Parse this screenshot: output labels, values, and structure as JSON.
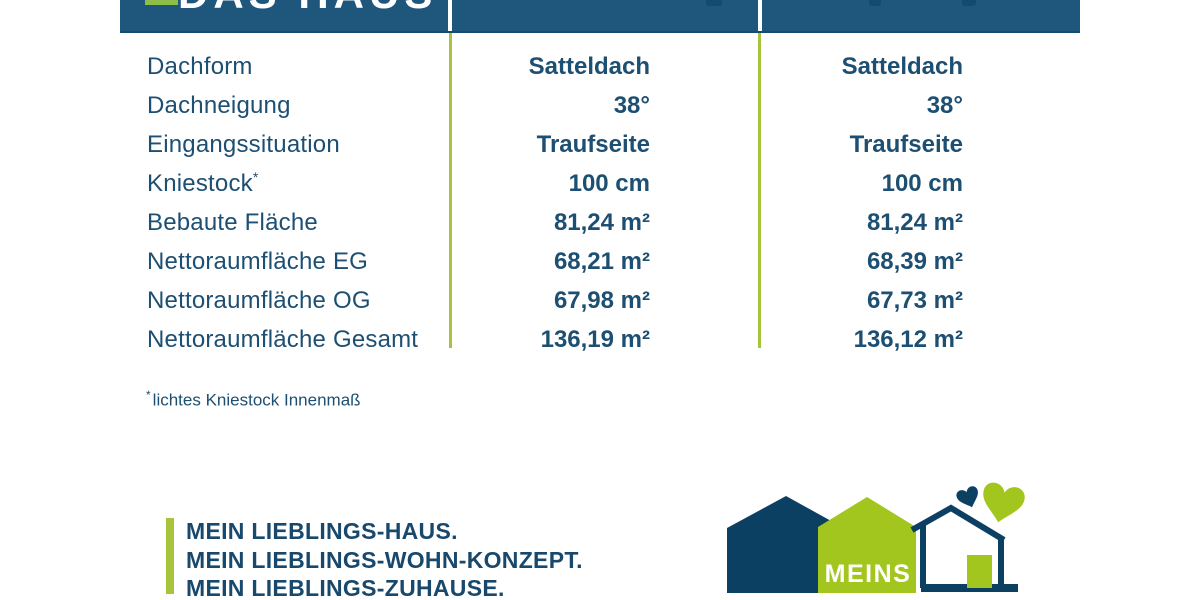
{
  "brand": {
    "logo_text": "DAS HAUS",
    "meins_label": "MEINS"
  },
  "table": {
    "rows": [
      {
        "label": "Dachform",
        "col1": "Satteldach",
        "col2": "Satteldach"
      },
      {
        "label": "Dachneigung",
        "col1": "38°",
        "col2": "38°"
      },
      {
        "label": "Eingangssituation",
        "col1": "Traufseite",
        "col2": "Traufseite"
      },
      {
        "label": "Kniestock",
        "label_sup": "*",
        "col1": "100 cm",
        "col2": "100 cm"
      },
      {
        "label": "Bebaute Fläche",
        "col1": "81,24 m²",
        "col2": "81,24 m²"
      },
      {
        "label": "Nettoraumfläche EG",
        "col1": "68,21 m²",
        "col2": "68,39 m²"
      },
      {
        "label": "Nettoraumfläche OG",
        "col1": "67,98 m²",
        "col2": "67,73 m²"
      },
      {
        "label": "Nettoraumfläche Gesamt",
        "col1": "136,19 m²",
        "col2": "136,12 m²"
      }
    ],
    "footnote_marker": "*",
    "footnote": "lichtes Kniestock Innenmaß"
  },
  "slogan": {
    "lines": [
      "MEIN LIEBLINGS-HAUS.",
      "MEIN LIEBLINGS-WOHN-KONZEPT.",
      "MEIN LIEBLINGS-ZUHAUSE."
    ]
  },
  "colors": {
    "header_blue": "#1E567C",
    "text_blue": "#1D4F72",
    "divider_green": "#A8C43C",
    "logo_navy": "#0C4063",
    "logo_green": "#A3C61F",
    "slogan_navy": "#18486C"
  }
}
